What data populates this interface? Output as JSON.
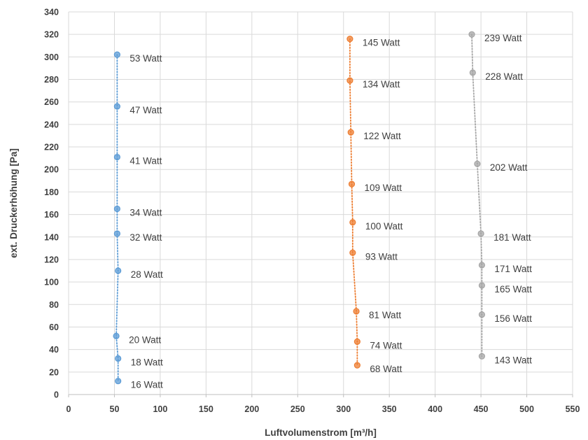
{
  "chart_data": {
    "type": "scatter",
    "xlabel": "Luftvolumenstrom [m³/h]",
    "ylabel": "ext. Druckerhöhung [Pa]",
    "xlim": [
      0,
      550
    ],
    "ylim": [
      0,
      340
    ],
    "xticks": [
      0,
      50,
      100,
      150,
      200,
      250,
      300,
      350,
      400,
      450,
      500,
      550
    ],
    "yticks": [
      0,
      20,
      40,
      60,
      80,
      100,
      120,
      140,
      160,
      180,
      200,
      220,
      240,
      260,
      280,
      300,
      320,
      340
    ],
    "grid": true,
    "series": [
      {
        "color": "#5b9bd5",
        "points": [
          {
            "x": 53,
            "y": 302,
            "label": "53 Watt"
          },
          {
            "x": 53,
            "y": 256,
            "label": "47 Watt"
          },
          {
            "x": 53,
            "y": 211,
            "label": "41 Watt"
          },
          {
            "x": 53,
            "y": 165,
            "label": "34 Watt"
          },
          {
            "x": 53,
            "y": 143,
            "label": "32 Watt"
          },
          {
            "x": 54,
            "y": 110,
            "label": "28 Watt"
          },
          {
            "x": 52,
            "y": 52,
            "label": "20 Watt"
          },
          {
            "x": 54,
            "y": 32,
            "label": "18 Watt"
          },
          {
            "x": 54,
            "y": 12,
            "label": "16 Watt"
          }
        ]
      },
      {
        "color": "#ed7d31",
        "points": [
          {
            "x": 307,
            "y": 316,
            "label": "145 Watt"
          },
          {
            "x": 307,
            "y": 279,
            "label": "134 Watt"
          },
          {
            "x": 308,
            "y": 233,
            "label": "122 Watt"
          },
          {
            "x": 309,
            "y": 187,
            "label": "109 Watt"
          },
          {
            "x": 310,
            "y": 153,
            "label": "100 Watt"
          },
          {
            "x": 310,
            "y": 126,
            "label": "93 Watt"
          },
          {
            "x": 314,
            "y": 74,
            "label": "81 Watt"
          },
          {
            "x": 315,
            "y": 47,
            "label": "74 Watt"
          },
          {
            "x": 315,
            "y": 26,
            "label": "68 Watt"
          }
        ]
      },
      {
        "color": "#a5a5a5",
        "points": [
          {
            "x": 440,
            "y": 320,
            "label": "239 Watt"
          },
          {
            "x": 441,
            "y": 286,
            "label": "228 Watt"
          },
          {
            "x": 446,
            "y": 205,
            "label": "202 Watt"
          },
          {
            "x": 450,
            "y": 143,
            "label": "181 Watt"
          },
          {
            "x": 451,
            "y": 115,
            "label": "171 Watt"
          },
          {
            "x": 451,
            "y": 97,
            "label": "165 Watt"
          },
          {
            "x": 451,
            "y": 71,
            "label": "156 Watt"
          },
          {
            "x": 451,
            "y": 34,
            "label": "143 Watt"
          }
        ]
      }
    ]
  }
}
